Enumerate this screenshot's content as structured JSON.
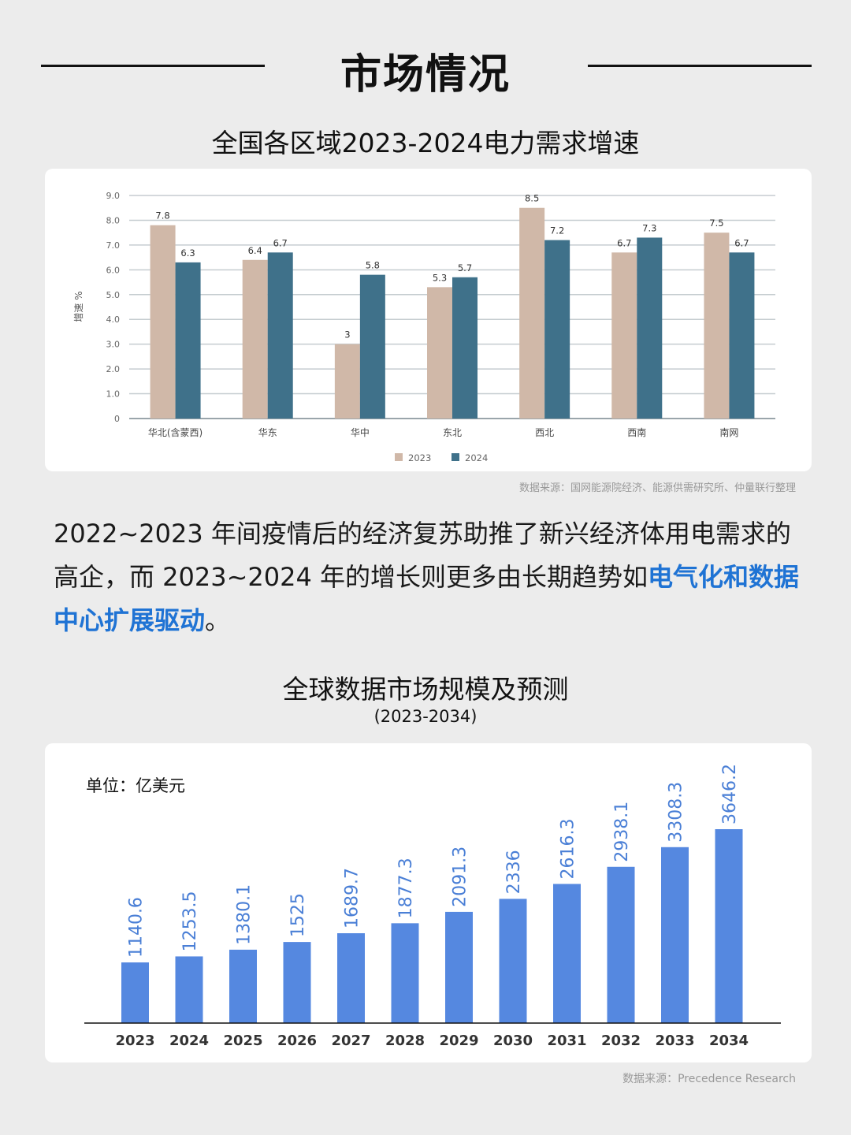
{
  "header": {
    "title": "市场情况"
  },
  "chart1_section": {
    "title": "全国各区域2023-2024电力需求增速",
    "source": "数据来源：国网能源院经济、能源供需研究所、仲量联行整理"
  },
  "paragraph": {
    "text_plain": "2022~2023 年间疫情后的经济复苏助推了新兴经济体用电需求的高企，而 2023~2024 年的增长则更多由长期趋势如",
    "text_highlight": "电气化和数据中心扩展驱动",
    "text_end": "。"
  },
  "chart2_section": {
    "title": "全球数据市场规模及预测",
    "subtitle": "(2023-2034)",
    "unit": "单位：亿美元",
    "source": "数据来源：Precedence Research"
  },
  "colors": {
    "c2023": "#d0b8a8",
    "c2024": "#3f718a",
    "bar_blue": "#5588e0",
    "label_blue": "#4a7fd6",
    "highlight": "#1f73d4"
  },
  "chart_data": [
    {
      "type": "bar",
      "title": "全国各区域2023-2024电力需求增速",
      "xlabel": "",
      "ylabel": "增速 %",
      "ylim": [
        0,
        9
      ],
      "yticks": [
        "0",
        "1.0",
        "2.0",
        "3.0",
        "4.0",
        "5.0",
        "6.0",
        "7.0",
        "8.0",
        "9.0"
      ],
      "grid": true,
      "legend_position": "bottom",
      "categories": [
        "华北(含蒙西)",
        "华东",
        "华中",
        "东北",
        "西北",
        "西南",
        "南网"
      ],
      "series": [
        {
          "name": "2023",
          "values": [
            7.8,
            6.4,
            3,
            5.3,
            8.5,
            6.7,
            7.5
          ],
          "labels": [
            "7.8",
            "6.4",
            "3",
            "5.3",
            "8.5",
            "6.7",
            "7.5"
          ]
        },
        {
          "name": "2024",
          "values": [
            6.3,
            6.7,
            5.8,
            5.7,
            7.2,
            7.3,
            6.7
          ],
          "labels": [
            "6.3",
            "6.7",
            "5.8",
            "5.7",
            "7.2",
            "7.3",
            "6.7"
          ]
        }
      ]
    },
    {
      "type": "bar",
      "title": "全球数据市场规模及预测 (2023-2034)",
      "xlabel": "",
      "ylabel": "单位：亿美元",
      "grid": false,
      "categories": [
        "2023",
        "2024",
        "2025",
        "2026",
        "2027",
        "2028",
        "2029",
        "2030",
        "2031",
        "2032",
        "2033",
        "2034"
      ],
      "values": [
        1140.6,
        1253.5,
        1380.1,
        1525,
        1689.7,
        1877.3,
        2091.3,
        2336,
        2616.3,
        2938.1,
        3308.3,
        3646.2
      ],
      "labels": [
        "1140.6",
        "1253.5",
        "1380.1",
        "1525",
        "1689.7",
        "1877.3",
        "2091.3",
        "2336",
        "2616.3",
        "2938.1",
        "3308.3",
        "3646.2"
      ]
    }
  ]
}
